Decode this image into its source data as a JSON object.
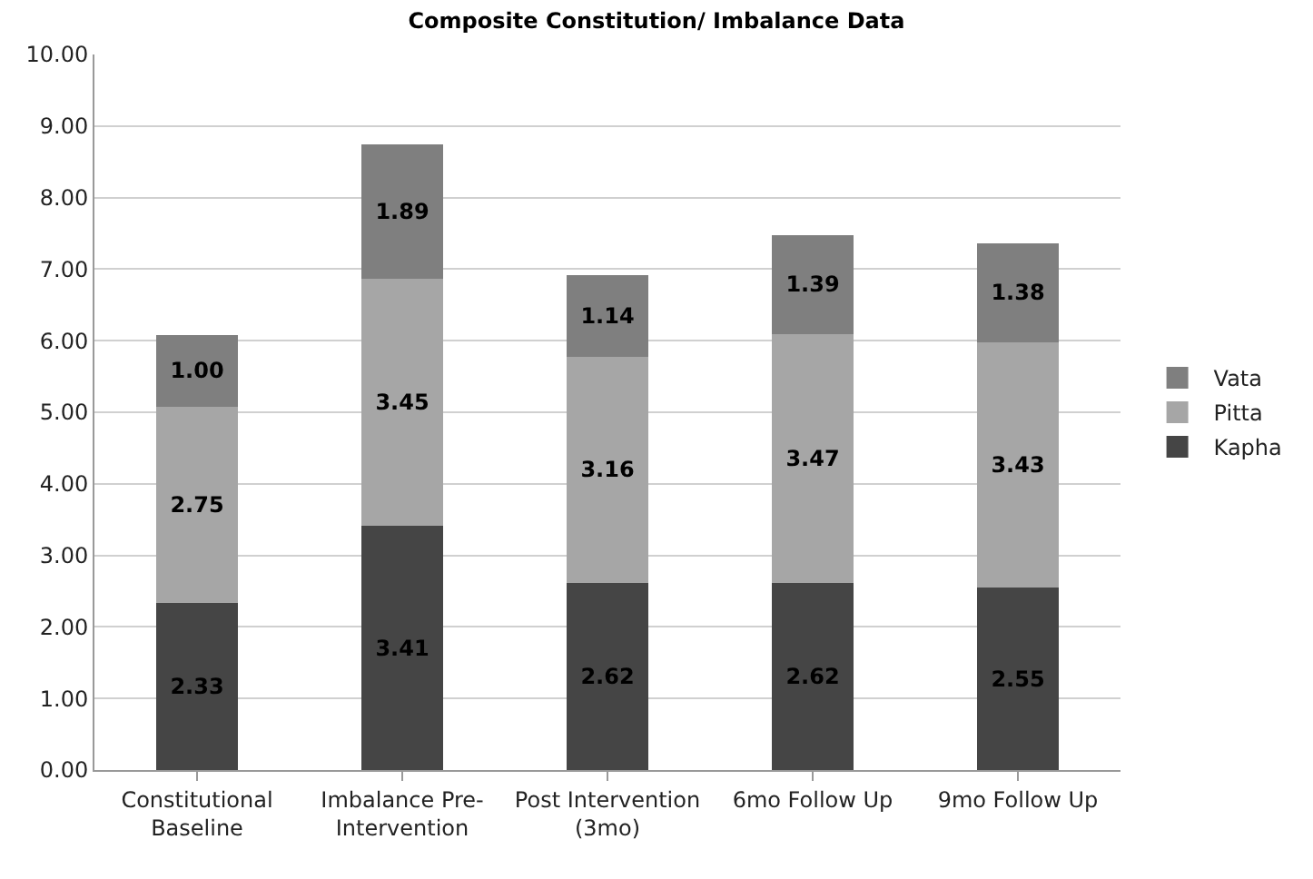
{
  "chart_data": {
    "type": "bar",
    "title": "Composite Constitution/ Imbalance Data",
    "categories": [
      "Constitutional Baseline",
      "Imbalance Pre-Intervention",
      "Post Intervention (3mo)",
      "6mo Follow Up",
      "9mo Follow Up"
    ],
    "stacked": true,
    "series": [
      {
        "name": "Kapha",
        "color": "#454545",
        "values": [
          2.33,
          3.41,
          2.62,
          2.62,
          2.55
        ],
        "value_labels": [
          "2.33",
          "3.41",
          "2.62",
          "2.62",
          "2.55"
        ]
      },
      {
        "name": "Pitta",
        "color": "#a6a6a6",
        "values": [
          2.75,
          3.45,
          3.16,
          3.47,
          3.43
        ],
        "value_labels": [
          "2.75",
          "3.45",
          "3.16",
          "3.47",
          "3.43"
        ]
      },
      {
        "name": "Vata",
        "color": "#7f7f7f",
        "values": [
          1.0,
          1.89,
          1.14,
          1.39,
          1.38
        ],
        "value_labels": [
          "1.00",
          "1.89",
          "1.14",
          "1.39",
          "1.38"
        ]
      }
    ],
    "ylim": [
      0,
      10
    ],
    "yticks": [
      {
        "value": 0,
        "label": "0.00"
      },
      {
        "value": 1,
        "label": "1.00"
      },
      {
        "value": 2,
        "label": "2.00"
      },
      {
        "value": 3,
        "label": "3.00"
      },
      {
        "value": 4,
        "label": "4.00"
      },
      {
        "value": 5,
        "label": "5.00"
      },
      {
        "value": 6,
        "label": "6.00"
      },
      {
        "value": 7,
        "label": "7.00"
      },
      {
        "value": 8,
        "label": "8.00"
      },
      {
        "value": 9,
        "label": "9.00"
      },
      {
        "value": 10,
        "label": "10.00"
      }
    ],
    "grid": "y",
    "legend": "right"
  }
}
